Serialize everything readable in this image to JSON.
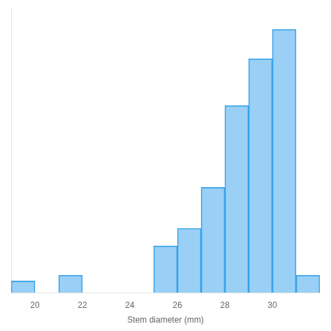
{
  "chart_data": {
    "type": "histogram",
    "bins": [
      19,
      20,
      21,
      22,
      23,
      24,
      25,
      26,
      27,
      28,
      29,
      30,
      31,
      32
    ],
    "values": [
      2,
      0,
      3,
      0,
      0,
      0,
      8,
      11,
      18,
      32,
      40,
      45,
      3
    ],
    "xlabel": "Stem diameter (mm)",
    "xlim": [
      19,
      32
    ],
    "xticks": [
      20,
      22,
      24,
      26,
      28,
      30
    ],
    "ylim": [
      0,
      48.6
    ],
    "tick_labels": "x",
    "grid": false
  }
}
